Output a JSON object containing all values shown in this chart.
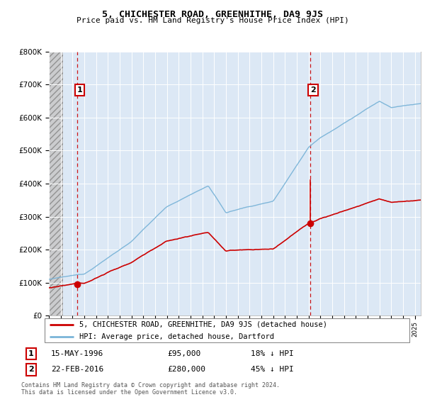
{
  "title": "5, CHICHESTER ROAD, GREENHITHE, DA9 9JS",
  "subtitle": "Price paid vs. HM Land Registry's House Price Index (HPI)",
  "legend_line1": "5, CHICHESTER ROAD, GREENHITHE, DA9 9JS (detached house)",
  "legend_line2": "HPI: Average price, detached house, Dartford",
  "transaction1_date": "15-MAY-1996",
  "transaction1_price": "£95,000",
  "transaction1_hpi": "18% ↓ HPI",
  "transaction1_year": 1996.37,
  "transaction1_value": 95000,
  "transaction2_date": "22-FEB-2016",
  "transaction2_price": "£280,000",
  "transaction2_hpi": "45% ↓ HPI",
  "transaction2_year": 2016.13,
  "transaction2_value": 280000,
  "footer": "Contains HM Land Registry data © Crown copyright and database right 2024.\nThis data is licensed under the Open Government Licence v3.0.",
  "hpi_color": "#7ab4d8",
  "price_color": "#cc0000",
  "vline_color": "#cc0000",
  "bg_color": "#dce8f5",
  "grid_color": "#b8cfe0",
  "ylim": [
    0,
    800000
  ],
  "xmin": 1994.0,
  "xmax": 2025.5
}
